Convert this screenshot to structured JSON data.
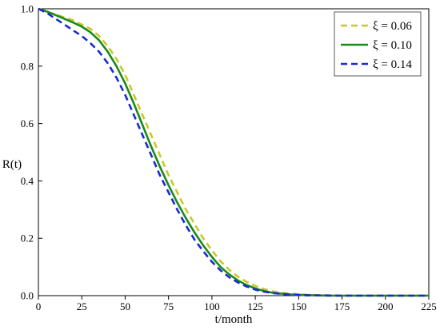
{
  "chart_data": {
    "type": "line",
    "title": "",
    "xlabel": "t/month",
    "ylabel": "R(t)",
    "xlim": [
      0,
      225
    ],
    "ylim": [
      0,
      1.0
    ],
    "xticks": [
      "0",
      "25",
      "50",
      "75",
      "100",
      "125",
      "150",
      "175",
      "200",
      "225"
    ],
    "yticks": [
      "0.0",
      "0.2",
      "0.4",
      "0.6",
      "0.8",
      "1.0"
    ],
    "grid": false,
    "legend_position": "top-right",
    "series": [
      {
        "name": "ξ = 0.06",
        "color": "#c8c828",
        "style": "dashed",
        "x": [
          0,
          5,
          10,
          15,
          20,
          25,
          30,
          35,
          40,
          45,
          50,
          55,
          60,
          65,
          70,
          75,
          80,
          85,
          90,
          95,
          100,
          105,
          110,
          115,
          120,
          125,
          130,
          135,
          140,
          145,
          150,
          155,
          160,
          170,
          180,
          200,
          225
        ],
        "y": [
          1.0,
          0.99,
          0.98,
          0.97,
          0.96,
          0.945,
          0.93,
          0.905,
          0.87,
          0.825,
          0.77,
          0.7,
          0.63,
          0.56,
          0.49,
          0.42,
          0.36,
          0.3,
          0.25,
          0.2,
          0.158,
          0.12,
          0.09,
          0.066,
          0.048,
          0.034,
          0.023,
          0.015,
          0.01,
          0.007,
          0.005,
          0.003,
          0.002,
          0.001,
          0.0,
          0.0,
          0.0
        ]
      },
      {
        "name": "ξ = 0.10",
        "color": "#1a8a1a",
        "style": "solid",
        "x": [
          0,
          5,
          10,
          15,
          20,
          25,
          30,
          35,
          40,
          45,
          50,
          55,
          60,
          65,
          70,
          75,
          80,
          85,
          90,
          95,
          100,
          105,
          110,
          115,
          120,
          125,
          130,
          135,
          140,
          145,
          150,
          155,
          160,
          170,
          180,
          200,
          225
        ],
        "y": [
          1.0,
          0.99,
          0.978,
          0.965,
          0.952,
          0.938,
          0.918,
          0.89,
          0.85,
          0.8,
          0.74,
          0.67,
          0.595,
          0.52,
          0.45,
          0.385,
          0.325,
          0.27,
          0.22,
          0.175,
          0.135,
          0.1,
          0.074,
          0.053,
          0.037,
          0.025,
          0.016,
          0.01,
          0.007,
          0.004,
          0.003,
          0.002,
          0.001,
          0.0,
          0.0,
          0.0,
          0.0
        ]
      },
      {
        "name": "ξ = 0.14",
        "color": "#1a2ad0",
        "style": "dashed",
        "x": [
          0,
          5,
          10,
          15,
          20,
          25,
          30,
          35,
          40,
          45,
          50,
          55,
          60,
          65,
          70,
          75,
          80,
          85,
          90,
          95,
          100,
          105,
          110,
          115,
          120,
          125,
          130,
          135,
          140,
          145,
          150,
          155,
          160,
          170,
          180,
          200,
          225
        ],
        "y": [
          1.0,
          0.985,
          0.965,
          0.945,
          0.925,
          0.905,
          0.88,
          0.85,
          0.81,
          0.76,
          0.7,
          0.63,
          0.56,
          0.49,
          0.42,
          0.36,
          0.3,
          0.245,
          0.195,
          0.155,
          0.118,
          0.088,
          0.064,
          0.046,
          0.032,
          0.021,
          0.014,
          0.009,
          0.006,
          0.004,
          0.002,
          0.001,
          0.001,
          0.0,
          0.0,
          0.0,
          0.0
        ]
      }
    ]
  }
}
